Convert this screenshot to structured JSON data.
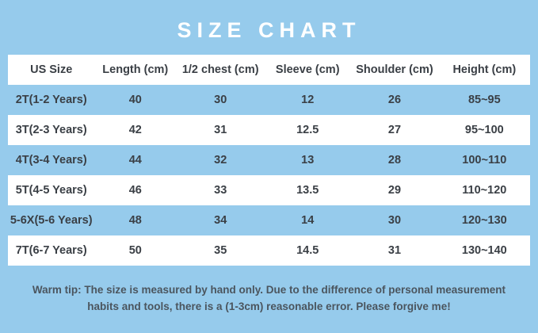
{
  "page": {
    "background_color": "#96cbec",
    "stripe_white": "#ffffff",
    "text_color": "#3a3f45",
    "note_color": "#4b555e",
    "title_color": "#ffffff"
  },
  "chart_data": {
    "type": "table",
    "title": "SIZE CHART",
    "columns": [
      "US Size",
      "Length (cm)",
      "1/2 chest (cm)",
      "Sleeve (cm)",
      "Shoulder (cm)",
      "Height (cm)"
    ],
    "rows": [
      [
        "2T(1-2 Years)",
        "40",
        "30",
        "12",
        "26",
        "85~95"
      ],
      [
        "3T(2-3 Years)",
        "42",
        "31",
        "12.5",
        "27",
        "95~100"
      ],
      [
        "4T(3-4 Years)",
        "44",
        "32",
        "13",
        "28",
        "100~110"
      ],
      [
        "5T(4-5 Years)",
        "46",
        "33",
        "13.5",
        "29",
        "110~120"
      ],
      [
        "5-6X(5-6 Years)",
        "48",
        "34",
        "14",
        "30",
        "120~130"
      ],
      [
        "7T(6-7 Years)",
        "50",
        "35",
        "14.5",
        "31",
        "130~140"
      ]
    ],
    "note": "Warm tip: The size is measured by hand only. Due to the difference of personal measurement habits and tools, there is a (1-3cm) reasonable error. Please forgive me!",
    "layout": {
      "grid": false,
      "row_striping": "alternating blue/white, header white",
      "alignment": "center"
    }
  }
}
